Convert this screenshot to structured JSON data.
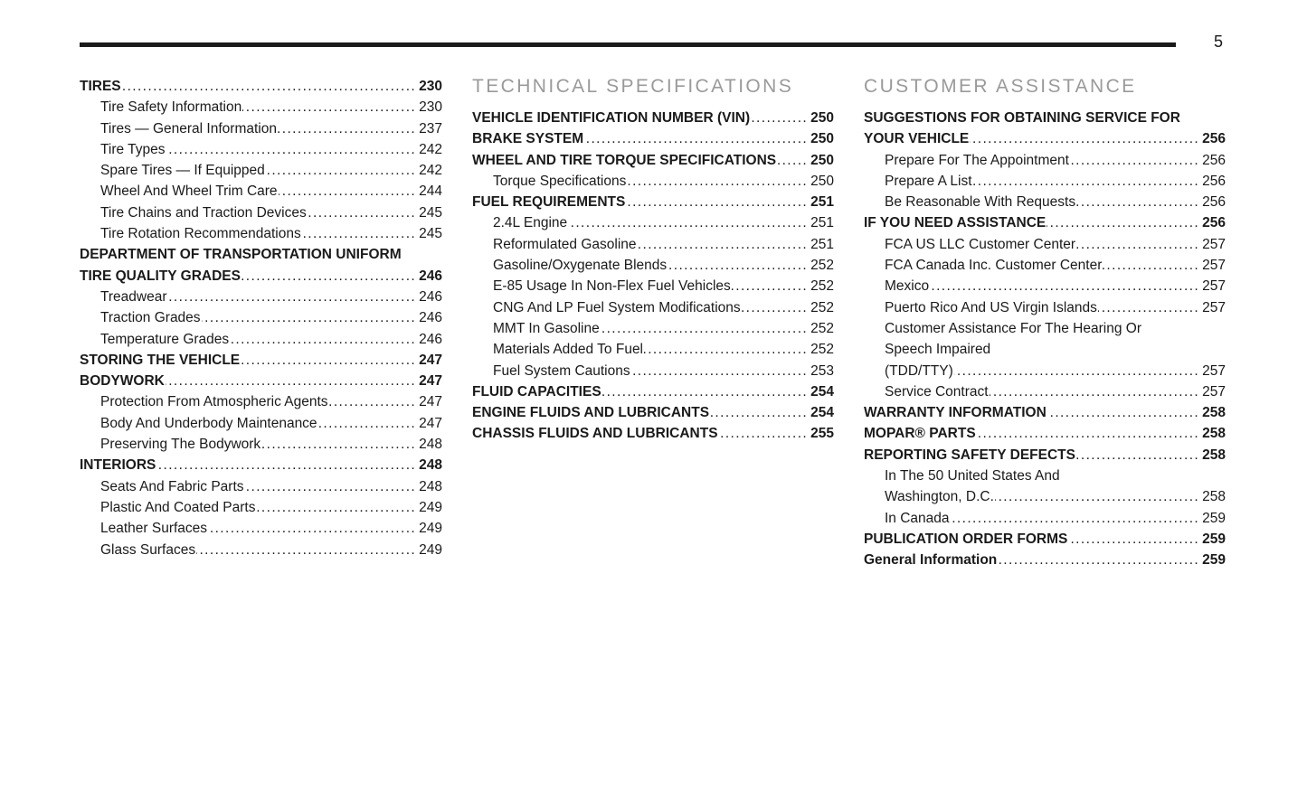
{
  "page": {
    "number": "5"
  },
  "colors": {
    "heading_gray": "#9a9a9a",
    "text": "#1a1a1a",
    "rule": "#1a1a1a"
  },
  "columns": [
    {
      "heading": null,
      "entries": [
        {
          "lines": [
            "TIRES"
          ],
          "page": "230",
          "bold": true,
          "indent": false
        },
        {
          "lines": [
            "Tire Safety Information"
          ],
          "page": "230",
          "bold": false,
          "indent": true
        },
        {
          "lines": [
            "Tires — General Information"
          ],
          "page": "237",
          "bold": false,
          "indent": true
        },
        {
          "lines": [
            "Tire Types"
          ],
          "page": "242",
          "bold": false,
          "indent": true
        },
        {
          "lines": [
            "Spare Tires — If Equipped"
          ],
          "page": "242",
          "bold": false,
          "indent": true
        },
        {
          "lines": [
            "Wheel And Wheel Trim Care"
          ],
          "page": "244",
          "bold": false,
          "indent": true
        },
        {
          "lines": [
            "Tire Chains and Traction Devices"
          ],
          "page": "245",
          "bold": false,
          "indent": true
        },
        {
          "lines": [
            "Tire Rotation Recommendations"
          ],
          "page": "245",
          "bold": false,
          "indent": true
        },
        {
          "lines": [
            "DEPARTMENT OF TRANSPORTATION UNIFORM",
            "TIRE QUALITY GRADES"
          ],
          "page": "246",
          "bold": true,
          "indent": false
        },
        {
          "lines": [
            "Treadwear"
          ],
          "page": "246",
          "bold": false,
          "indent": true
        },
        {
          "lines": [
            "Traction Grades"
          ],
          "page": "246",
          "bold": false,
          "indent": true
        },
        {
          "lines": [
            "Temperature Grades"
          ],
          "page": "246",
          "bold": false,
          "indent": true
        },
        {
          "lines": [
            "STORING THE VEHICLE"
          ],
          "page": "247",
          "bold": true,
          "indent": false
        },
        {
          "lines": [
            "BODYWORK"
          ],
          "page": "247",
          "bold": true,
          "indent": false
        },
        {
          "lines": [
            "Protection From Atmospheric Agents"
          ],
          "page": "247",
          "bold": false,
          "indent": true
        },
        {
          "lines": [
            "Body And Underbody Maintenance"
          ],
          "page": "247",
          "bold": false,
          "indent": true
        },
        {
          "lines": [
            "Preserving The Bodywork"
          ],
          "page": "248",
          "bold": false,
          "indent": true
        },
        {
          "lines": [
            "INTERIORS"
          ],
          "page": "248",
          "bold": true,
          "indent": false
        },
        {
          "lines": [
            "Seats And Fabric Parts"
          ],
          "page": "248",
          "bold": false,
          "indent": true
        },
        {
          "lines": [
            "Plastic And Coated Parts"
          ],
          "page": "249",
          "bold": false,
          "indent": true
        },
        {
          "lines": [
            "Leather Surfaces"
          ],
          "page": "249",
          "bold": false,
          "indent": true
        },
        {
          "lines": [
            "Glass Surfaces"
          ],
          "page": "249",
          "bold": false,
          "indent": true
        }
      ]
    },
    {
      "heading": "TECHNICAL SPECIFICATIONS",
      "entries": [
        {
          "lines": [
            "VEHICLE IDENTIFICATION NUMBER (VIN)"
          ],
          "page": "250",
          "bold": true,
          "indent": false
        },
        {
          "lines": [
            "BRAKE SYSTEM"
          ],
          "page": "250",
          "bold": true,
          "indent": false
        },
        {
          "lines": [
            "WHEEL AND TIRE TORQUE SPECIFICATIONS"
          ],
          "page": "250",
          "bold": true,
          "indent": false
        },
        {
          "lines": [
            "Torque Specifications"
          ],
          "page": "250",
          "bold": false,
          "indent": true
        },
        {
          "lines": [
            "FUEL REQUIREMENTS"
          ],
          "page": "251",
          "bold": true,
          "indent": false
        },
        {
          "lines": [
            "2.4L Engine"
          ],
          "page": "251",
          "bold": false,
          "indent": true
        },
        {
          "lines": [
            "Reformulated Gasoline"
          ],
          "page": "251",
          "bold": false,
          "indent": true
        },
        {
          "lines": [
            "Gasoline/Oxygenate Blends"
          ],
          "page": "252",
          "bold": false,
          "indent": true
        },
        {
          "lines": [
            "E-85 Usage In Non-Flex Fuel Vehicles"
          ],
          "page": "252",
          "bold": false,
          "indent": true
        },
        {
          "lines": [
            "CNG And LP Fuel System Modifications"
          ],
          "page": "252",
          "bold": false,
          "indent": true
        },
        {
          "lines": [
            "MMT In Gasoline"
          ],
          "page": "252",
          "bold": false,
          "indent": true
        },
        {
          "lines": [
            "Materials Added To Fuel"
          ],
          "page": "252",
          "bold": false,
          "indent": true
        },
        {
          "lines": [
            "Fuel System Cautions"
          ],
          "page": "253",
          "bold": false,
          "indent": true
        },
        {
          "lines": [
            "FLUID CAPACITIES"
          ],
          "page": "254",
          "bold": true,
          "indent": false
        },
        {
          "lines": [
            "ENGINE FLUIDS AND LUBRICANTS"
          ],
          "page": "254",
          "bold": true,
          "indent": false
        },
        {
          "lines": [
            "CHASSIS FLUIDS AND LUBRICANTS"
          ],
          "page": "255",
          "bold": true,
          "indent": false
        }
      ]
    },
    {
      "heading": "CUSTOMER ASSISTANCE",
      "entries": [
        {
          "lines": [
            "SUGGESTIONS FOR OBTAINING SERVICE FOR",
            "YOUR VEHICLE"
          ],
          "page": "256",
          "bold": true,
          "indent": false
        },
        {
          "lines": [
            "Prepare For The Appointment"
          ],
          "page": "256",
          "bold": false,
          "indent": true
        },
        {
          "lines": [
            "Prepare A List"
          ],
          "page": "256",
          "bold": false,
          "indent": true
        },
        {
          "lines": [
            "Be Reasonable With Requests"
          ],
          "page": "256",
          "bold": false,
          "indent": true
        },
        {
          "lines": [
            "IF YOU NEED ASSISTANCE"
          ],
          "page": "256",
          "bold": true,
          "indent": false
        },
        {
          "lines": [
            "FCA US LLC Customer Center"
          ],
          "page": "257",
          "bold": false,
          "indent": true
        },
        {
          "lines": [
            "FCA Canada Inc. Customer Center"
          ],
          "page": "257",
          "bold": false,
          "indent": true
        },
        {
          "lines": [
            "Mexico"
          ],
          "page": "257",
          "bold": false,
          "indent": true
        },
        {
          "lines": [
            "Puerto Rico And US Virgin Islands"
          ],
          "page": "257",
          "bold": false,
          "indent": true
        },
        {
          "lines": [
            "Customer Assistance For The Hearing Or",
            "Speech Impaired",
            "(TDD/TTY)"
          ],
          "page": "257",
          "bold": false,
          "indent": true
        },
        {
          "lines": [
            "Service Contract"
          ],
          "page": "257",
          "bold": false,
          "indent": true
        },
        {
          "lines": [
            "WARRANTY INFORMATION"
          ],
          "page": "258",
          "bold": true,
          "indent": false
        },
        {
          "lines": [
            "MOPAR® PARTS"
          ],
          "page": "258",
          "bold": true,
          "indent": false
        },
        {
          "lines": [
            "REPORTING SAFETY DEFECTS"
          ],
          "page": "258",
          "bold": true,
          "indent": false
        },
        {
          "lines": [
            "In The 50 United States And",
            "Washington, D.C."
          ],
          "page": "258",
          "bold": false,
          "indent": true
        },
        {
          "lines": [
            "In Canada"
          ],
          "page": "259",
          "bold": false,
          "indent": true
        },
        {
          "lines": [
            "PUBLICATION ORDER FORMS"
          ],
          "page": "259",
          "bold": true,
          "indent": false
        },
        {
          "lines": [
            "General Information"
          ],
          "page": "259",
          "bold": true,
          "indent": false
        }
      ]
    }
  ]
}
